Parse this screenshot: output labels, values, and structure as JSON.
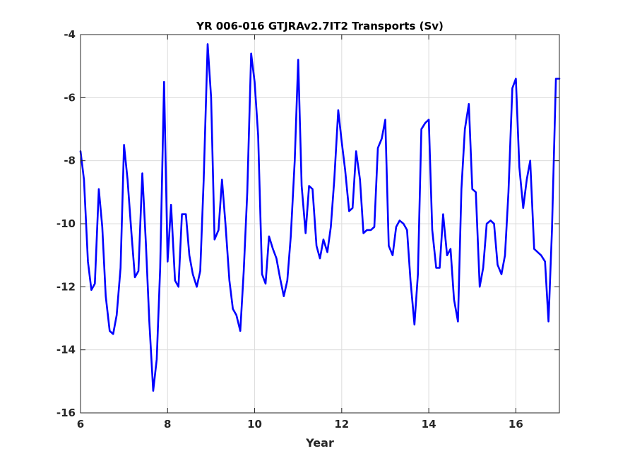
{
  "chart_data": {
    "type": "line",
    "title": "YR 006-016 GTJRAv2.7IT2 Transports (Sv)",
    "xlabel": "Year",
    "ylabel": "",
    "xlim": [
      6,
      17
    ],
    "ylim": [
      -16,
      -4
    ],
    "xticks": [
      6,
      8,
      10,
      12,
      14,
      16
    ],
    "yticks": [
      -16,
      -14,
      -12,
      -10,
      -8,
      -6,
      -4
    ],
    "grid": true,
    "line_color": "#0000ff",
    "series": [
      {
        "x": [
          6.0,
          6.08,
          6.17,
          6.25,
          6.33,
          6.42,
          6.5,
          6.58,
          6.67,
          6.75,
          6.83,
          6.92,
          7.0,
          7.08,
          7.17,
          7.25,
          7.33,
          7.42,
          7.5,
          7.58,
          7.67,
          7.75,
          7.83,
          7.92,
          8.0,
          8.08,
          8.17,
          8.25,
          8.33,
          8.42,
          8.5,
          8.58,
          8.67,
          8.75,
          8.83,
          8.92,
          9.0,
          9.08,
          9.17,
          9.25,
          9.33,
          9.42,
          9.5,
          9.58,
          9.67,
          9.75,
          9.83,
          9.92,
          10.0,
          10.08,
          10.17,
          10.25,
          10.33,
          10.42,
          10.5,
          10.58,
          10.67,
          10.75,
          10.83,
          10.92,
          11.0,
          11.08,
          11.17,
          11.25,
          11.33,
          11.42,
          11.5,
          11.58,
          11.67,
          11.75,
          11.83,
          11.92,
          12.0,
          12.08,
          12.17,
          12.25,
          12.33,
          12.42,
          12.5,
          12.58,
          12.67,
          12.75,
          12.83,
          12.92,
          13.0,
          13.08,
          13.17,
          13.25,
          13.33,
          13.42,
          13.5,
          13.58,
          13.67,
          13.75,
          13.83,
          13.92,
          14.0,
          14.08,
          14.17,
          14.25,
          14.33,
          14.42,
          14.5,
          14.58,
          14.67,
          14.75,
          14.83,
          14.92,
          15.0,
          15.08,
          15.17,
          15.25,
          15.33,
          15.42,
          15.5,
          15.58,
          15.67,
          15.75,
          15.83,
          15.92,
          16.0,
          16.08,
          16.17,
          16.25,
          16.33,
          16.42,
          16.5,
          16.58,
          16.67,
          16.75,
          16.83,
          16.92,
          17.0
        ],
        "values": [
          -7.7,
          -8.6,
          -11.2,
          -12.1,
          -11.9,
          -8.9,
          -10.1,
          -12.3,
          -13.4,
          -13.5,
          -12.9,
          -11.4,
          -7.5,
          -8.6,
          -10.3,
          -11.7,
          -11.5,
          -8.4,
          -10.6,
          -13.1,
          -15.3,
          -14.3,
          -11.4,
          -5.5,
          -11.2,
          -9.4,
          -11.8,
          -12.0,
          -9.7,
          -9.7,
          -11.0,
          -11.6,
          -12.0,
          -11.5,
          -8.6,
          -4.3,
          -6.0,
          -10.5,
          -10.2,
          -8.6,
          -10.0,
          -11.8,
          -12.7,
          -12.9,
          -13.4,
          -11.5,
          -9.0,
          -4.6,
          -5.5,
          -7.2,
          -11.6,
          -11.9,
          -10.4,
          -10.8,
          -11.1,
          -11.7,
          -12.3,
          -11.8,
          -10.4,
          -8.0,
          -4.8,
          -8.8,
          -10.3,
          -8.8,
          -8.9,
          -10.7,
          -11.1,
          -10.5,
          -10.9,
          -10.1,
          -8.6,
          -6.4,
          -7.4,
          -8.3,
          -9.6,
          -9.5,
          -7.7,
          -8.6,
          -10.3,
          -10.2,
          -10.2,
          -10.1,
          -7.6,
          -7.3,
          -6.7,
          -10.7,
          -11.0,
          -10.1,
          -9.9,
          -10.0,
          -10.2,
          -11.8,
          -13.2,
          -11.6,
          -7.0,
          -6.8,
          -6.7,
          -10.2,
          -11.4,
          -11.4,
          -9.7,
          -11.0,
          -10.8,
          -12.4,
          -13.1,
          -8.9,
          -7.0,
          -6.2,
          -8.9,
          -9.0,
          -12.0,
          -11.4,
          -10.0,
          -9.9,
          -10.0,
          -11.3,
          -11.6,
          -11.0,
          -9.0,
          -5.7,
          -5.4,
          -8.2,
          -9.5,
          -8.6,
          -8.0,
          -10.8,
          -10.9,
          -11.0,
          -11.2,
          -13.1,
          -10.2,
          -5.4,
          -5.4
        ]
      }
    ]
  }
}
